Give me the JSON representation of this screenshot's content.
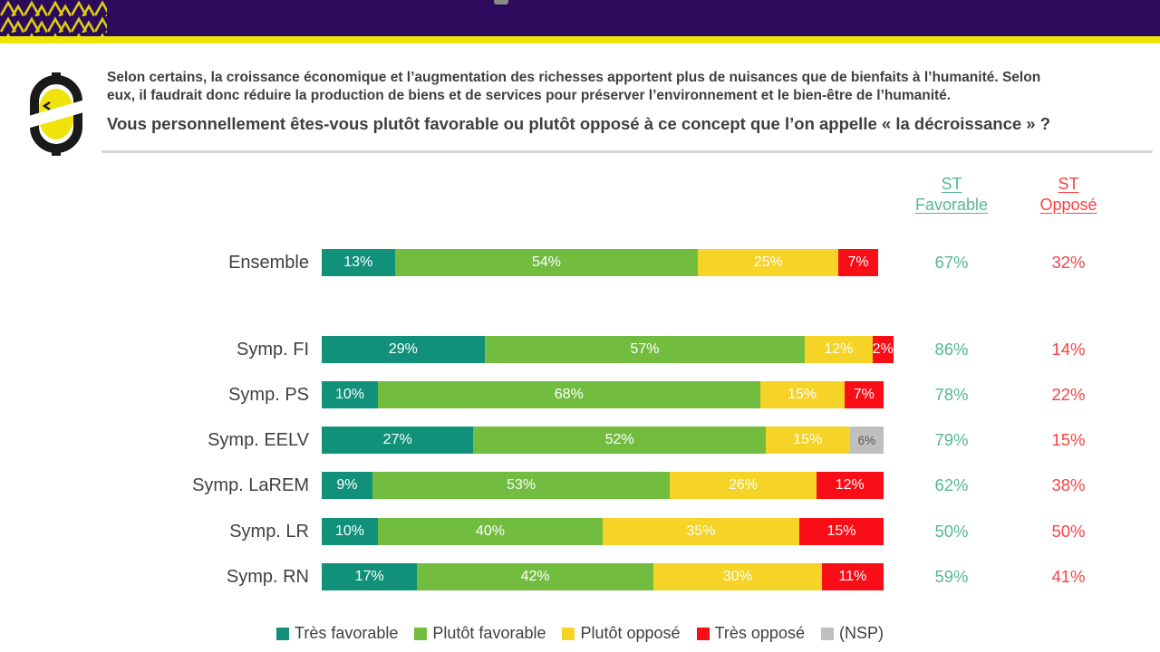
{
  "header": {
    "band_color": "#2E0A5C",
    "stripe_color": "#EEE503",
    "zigzag_color": "#DCCD0F"
  },
  "logo": {
    "ellipse_color": "#EFE30B",
    "ring_color": "#1A1A1A"
  },
  "question": {
    "line1": "Selon certains, la croissance économique et l’augmentation des richesses apportent plus de nuisances que de bienfaits à l’humanité. Selon",
    "line2": "eux, il faudrait donc réduire la production de biens et de services pour préserver l’environnement et le bien-être de l’humanité.",
    "line3": "Vous personnellement êtes-vous plutôt favorable ou plutôt opposé à ce concept que l’on appelle « la décroissance » ?"
  },
  "summary_columns": {
    "favorable": {
      "label_line1": "ST",
      "label_line2": "Favorable",
      "color": "#55B795"
    },
    "oppose": {
      "label_line1": "ST",
      "label_line2": "Opposé",
      "color": "#FB4144"
    }
  },
  "chart_data": {
    "type": "bar",
    "orientation": "horizontal",
    "stacked": true,
    "unit": "%",
    "xlim": [
      0,
      100
    ],
    "grid": false,
    "legend_position": "bottom",
    "categories": [
      "Ensemble",
      "Symp. FI",
      "Symp. PS",
      "Symp. EELV",
      "Symp. LaREM",
      "Symp. LR",
      "Symp. RN"
    ],
    "series": [
      {
        "name": "Très favorable",
        "color": "#12917A",
        "values": [
          13,
          29,
          10,
          27,
          9,
          10,
          17
        ]
      },
      {
        "name": "Plutôt favorable",
        "color": "#72BC40",
        "values": [
          54,
          57,
          68,
          52,
          53,
          40,
          42
        ]
      },
      {
        "name": "Plutôt opposé",
        "color": "#F5D327",
        "values": [
          25,
          12,
          15,
          15,
          26,
          35,
          30
        ]
      },
      {
        "name": "Très opposé",
        "color": "#F90D16",
        "values": [
          7,
          2,
          7,
          0,
          12,
          15,
          11
        ]
      },
      {
        "name": "(NSP)",
        "color": "#BFBFBF",
        "values": [
          0,
          0,
          0,
          6,
          0,
          0,
          0
        ]
      }
    ],
    "st_favorable": {
      "values": [
        "67%",
        "86%",
        "78%",
        "79%",
        "62%",
        "50%",
        "59%"
      ]
    },
    "st_oppose": {
      "values": [
        "32%",
        "14%",
        "22%",
        "15%",
        "38%",
        "50%",
        "41%"
      ]
    }
  },
  "legend": {
    "items": [
      {
        "label": "Très favorable",
        "color": "#12917A"
      },
      {
        "label": "Plutôt favorable",
        "color": "#72BC40"
      },
      {
        "label": "Plutôt opposé",
        "color": "#F5D327"
      },
      {
        "label": "Très opposé",
        "color": "#F90D16"
      },
      {
        "label": "(NSP)",
        "color": "#BFBFBF"
      }
    ]
  }
}
